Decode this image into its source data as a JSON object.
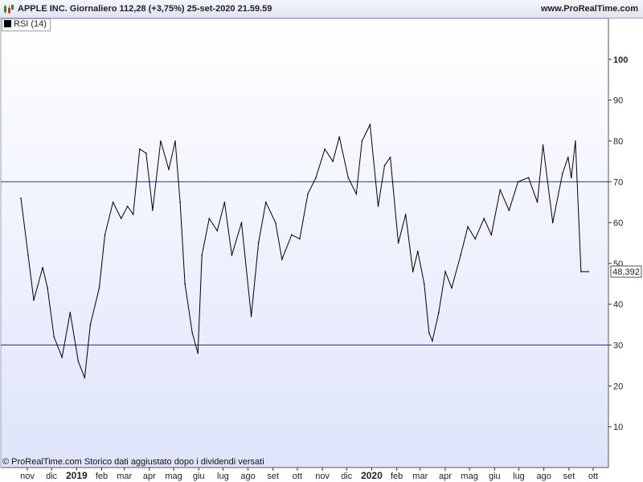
{
  "header": {
    "title": "APPLE INC. Giornaliero 112,28 (+3,75%) 25-set-2020 21.59.59",
    "site": "www.ProRealTime.com"
  },
  "legend": {
    "label": "RSI (14)"
  },
  "footer": {
    "text": "© ProRealTime.com  Storico dati aggiustato dopo i dividendi versati"
  },
  "colors": {
    "line": "#000000",
    "levels": "#2b2f8f",
    "bg_top": "#ffffff",
    "bg_bottom": "#dfe4fb",
    "current_value_box": "#ffffff"
  },
  "chart_data": {
    "type": "line",
    "title": "APPLE INC. Giornaliero 112,28 (+3,75%) 25-set-2020 21.59.59",
    "series": [
      {
        "name": "RSI (14)",
        "x": [
          "2018-10-24",
          "2018-11-02",
          "2018-11-09",
          "2018-11-20",
          "2018-11-26",
          "2018-12-04",
          "2018-12-14",
          "2018-12-24",
          "2019-01-03",
          "2019-01-11",
          "2019-01-18",
          "2019-01-29",
          "2019-02-05",
          "2019-02-15",
          "2019-02-25",
          "2019-03-05",
          "2019-03-12",
          "2019-03-20",
          "2019-03-28",
          "2019-04-05",
          "2019-04-15",
          "2019-04-25",
          "2019-05-03",
          "2019-05-09",
          "2019-05-15",
          "2019-05-24",
          "2019-05-31",
          "2019-06-05",
          "2019-06-14",
          "2019-06-24",
          "2019-07-03",
          "2019-07-12",
          "2019-07-24",
          "2019-08-05",
          "2019-08-14",
          "2019-08-23",
          "2019-09-04",
          "2019-09-12",
          "2019-09-24",
          "2019-10-04",
          "2019-10-14",
          "2019-10-24",
          "2019-11-04",
          "2019-11-14",
          "2019-11-22",
          "2019-12-03",
          "2019-12-13",
          "2019-12-20",
          "2019-12-30",
          "2020-01-09",
          "2020-01-17",
          "2020-01-24",
          "2020-02-03",
          "2020-02-12",
          "2020-02-21",
          "2020-02-27",
          "2020-03-06",
          "2020-03-12",
          "2020-03-16",
          "2020-03-24",
          "2020-04-01",
          "2020-04-09",
          "2020-04-20",
          "2020-04-29",
          "2020-05-08",
          "2020-05-19",
          "2020-05-28",
          "2020-06-08",
          "2020-06-19",
          "2020-06-30",
          "2020-07-13",
          "2020-07-24",
          "2020-07-31",
          "2020-08-12",
          "2020-08-24",
          "2020-08-31",
          "2020-09-04",
          "2020-09-09",
          "2020-09-16",
          "2020-09-25"
        ],
        "values": [
          66,
          52,
          41,
          49,
          44,
          32,
          27,
          38,
          26,
          22,
          35,
          44,
          57,
          65,
          61,
          64,
          62,
          78,
          77,
          63,
          80,
          73,
          80,
          65,
          45,
          33,
          28,
          52,
          61,
          58,
          65,
          52,
          60,
          37,
          55,
          65,
          60,
          51,
          57,
          56,
          67,
          71,
          78,
          75,
          81,
          71,
          67,
          80,
          84,
          64,
          74,
          76,
          55,
          62,
          48,
          53,
          45,
          33,
          31,
          38,
          48,
          44,
          52,
          59,
          56,
          61,
          57,
          68,
          63,
          70,
          71,
          65,
          79,
          60,
          72,
          76,
          71,
          80,
          48,
          48
        ]
      }
    ],
    "ylim": [
      0,
      110
    ],
    "yticks": [
      10,
      20,
      30,
      40,
      50,
      60,
      70,
      80,
      90,
      100
    ],
    "ytick_bold": [
      100
    ],
    "levels": [
      70,
      30
    ],
    "current_value": "48,392",
    "xticks": [
      {
        "label": "nov",
        "date": "2018-11-01",
        "bold": false
      },
      {
        "label": "dic",
        "date": "2018-12-01",
        "bold": false
      },
      {
        "label": "2019",
        "date": "2019-01-01",
        "bold": true
      },
      {
        "label": "feb",
        "date": "2019-02-01",
        "bold": false
      },
      {
        "label": "mar",
        "date": "2019-03-01",
        "bold": false
      },
      {
        "label": "apr",
        "date": "2019-04-01",
        "bold": false
      },
      {
        "label": "mag",
        "date": "2019-05-01",
        "bold": false
      },
      {
        "label": "giu",
        "date": "2019-06-01",
        "bold": false
      },
      {
        "label": "lug",
        "date": "2019-07-01",
        "bold": false
      },
      {
        "label": "ago",
        "date": "2019-08-01",
        "bold": false
      },
      {
        "label": "set",
        "date": "2019-09-01",
        "bold": false
      },
      {
        "label": "ott",
        "date": "2019-10-01",
        "bold": false
      },
      {
        "label": "nov",
        "date": "2019-11-01",
        "bold": false
      },
      {
        "label": "dic",
        "date": "2019-12-01",
        "bold": false
      },
      {
        "label": "2020",
        "date": "2020-01-01",
        "bold": true
      },
      {
        "label": "feb",
        "date": "2020-02-01",
        "bold": false
      },
      {
        "label": "mar",
        "date": "2020-03-01",
        "bold": false
      },
      {
        "label": "apr",
        "date": "2020-04-01",
        "bold": false
      },
      {
        "label": "mag",
        "date": "2020-05-01",
        "bold": false
      },
      {
        "label": "giu",
        "date": "2020-06-01",
        "bold": false
      },
      {
        "label": "lug",
        "date": "2020-07-01",
        "bold": false
      },
      {
        "label": "ago",
        "date": "2020-08-01",
        "bold": false
      },
      {
        "label": "set",
        "date": "2020-09-01",
        "bold": false
      },
      {
        "label": "ott",
        "date": "2020-10-01",
        "bold": false
      }
    ],
    "xlabel": "",
    "ylabel": "",
    "grid": false
  }
}
